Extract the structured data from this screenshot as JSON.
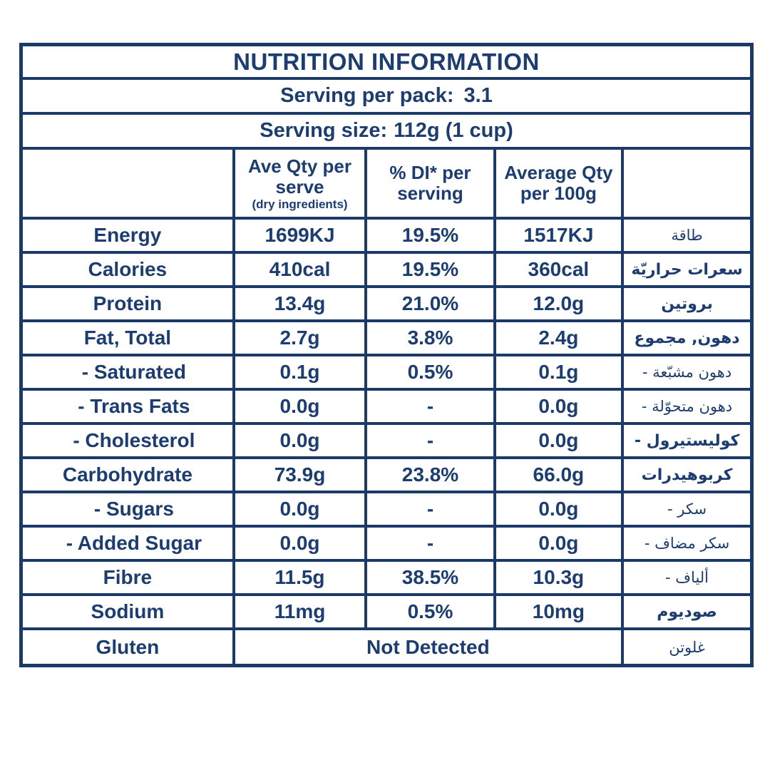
{
  "title": "NUTRITION INFORMATION",
  "serving_per_pack": {
    "label": "Serving per pack:",
    "value": "3.1"
  },
  "serving_size": {
    "label": "Serving size:",
    "value": "112g (1 cup)"
  },
  "columns": {
    "per_serve_line1": "Ave Qty per serve",
    "per_serve_note": "(dry ingredients)",
    "di_per_serving": "% DI* per serving",
    "avg_per_100g": "Average Qty per 100g"
  },
  "rows": [
    {
      "label": "Energy",
      "per_serve": "1699KJ",
      "di": "19.5%",
      "per_100g": "1517KJ",
      "ar": "طاقة"
    },
    {
      "label": "Calories",
      "per_serve": "410cal",
      "di": "19.5%",
      "per_100g": "360cal",
      "ar": "سعرات حراريّة"
    },
    {
      "label": "Protein",
      "per_serve": "13.4g",
      "di": "21.0%",
      "per_100g": "12.0g",
      "ar": "بروتين"
    },
    {
      "label": "Fat, Total",
      "per_serve": "2.7g",
      "di": "3.8%",
      "per_100g": "2.4g",
      "ar": "دهون, مجموع"
    },
    {
      "label": "- Saturated",
      "per_serve": "0.1g",
      "di": "0.5%",
      "per_100g": "0.1g",
      "ar": "- دهون مشبّعة"
    },
    {
      "label": "- Trans Fats",
      "per_serve": "0.0g",
      "di": "-",
      "per_100g": "0.0g",
      "ar": "- دهون متحوّلة"
    },
    {
      "label": "- Cholesterol",
      "per_serve": "0.0g",
      "di": "-",
      "per_100g": "0.0g",
      "ar": "- كوليستيرول"
    },
    {
      "label": "Carbohydrate",
      "per_serve": "73.9g",
      "di": "23.8%",
      "per_100g": "66.0g",
      "ar": "كربوهيدرات"
    },
    {
      "label": "- Sugars",
      "per_serve": "0.0g",
      "di": "-",
      "per_100g": "0.0g",
      "ar": "- سكر"
    },
    {
      "label": "- Added Sugar",
      "per_serve": "0.0g",
      "di": "-",
      "per_100g": "0.0g",
      "ar": "- سكر مضاف"
    },
    {
      "label": "Fibre",
      "per_serve": "11.5g",
      "di": "38.5%",
      "per_100g": "10.3g",
      "ar": "- ألياف"
    },
    {
      "label": "Sodium",
      "per_serve": "11mg",
      "di": "0.5%",
      "per_100g": "10mg",
      "ar": "صوديوم"
    }
  ],
  "gluten_row": {
    "label": "Gluten",
    "value": "Not Detected",
    "ar": "غلوتن"
  },
  "colors": {
    "text_navy": "#1d3c6f",
    "border_navy": "#1c3a68",
    "background": "#ffffff"
  }
}
